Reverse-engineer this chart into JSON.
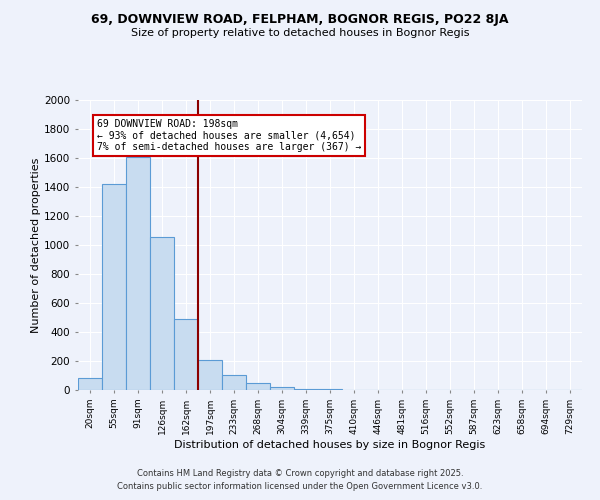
{
  "title_line1": "69, DOWNVIEW ROAD, FELPHAM, BOGNOR REGIS, PO22 8JA",
  "title_line2": "Size of property relative to detached houses in Bognor Regis",
  "xlabel": "Distribution of detached houses by size in Bognor Regis",
  "ylabel": "Number of detached properties",
  "categories": [
    "20sqm",
    "55sqm",
    "91sqm",
    "126sqm",
    "162sqm",
    "197sqm",
    "233sqm",
    "268sqm",
    "304sqm",
    "339sqm",
    "375sqm",
    "410sqm",
    "446sqm",
    "481sqm",
    "516sqm",
    "552sqm",
    "587sqm",
    "623sqm",
    "658sqm",
    "694sqm",
    "729sqm"
  ],
  "values": [
    80,
    1420,
    1610,
    1055,
    490,
    205,
    105,
    45,
    20,
    10,
    5,
    0,
    0,
    0,
    0,
    0,
    0,
    0,
    0,
    0,
    0
  ],
  "bar_color": "#c8dcf0",
  "bar_edge_color": "#5b9bd5",
  "vline_color": "#8b0000",
  "annotation_text": "69 DOWNVIEW ROAD: 198sqm\n← 93% of detached houses are smaller (4,654)\n7% of semi-detached houses are larger (367) →",
  "annotation_box_color": "#ffffff",
  "annotation_box_edge": "#cc0000",
  "ylim": [
    0,
    2000
  ],
  "yticks": [
    0,
    200,
    400,
    600,
    800,
    1000,
    1200,
    1400,
    1600,
    1800,
    2000
  ],
  "footnote1": "Contains HM Land Registry data © Crown copyright and database right 2025.",
  "footnote2": "Contains public sector information licensed under the Open Government Licence v3.0.",
  "bg_color": "#eef2fb",
  "grid_color": "#ffffff"
}
